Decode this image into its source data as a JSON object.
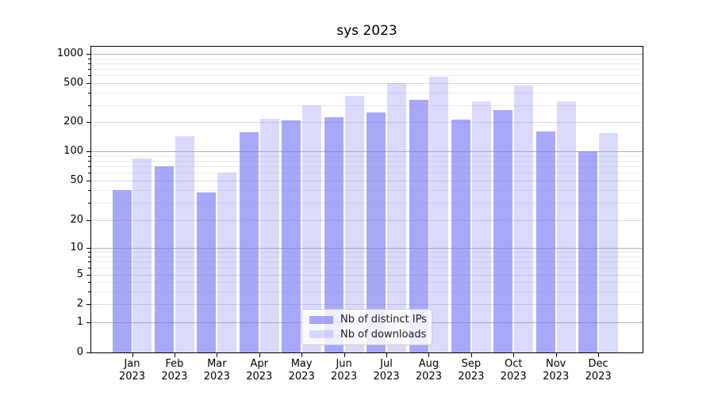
{
  "title": "sys 2023",
  "chart_data": {
    "type": "bar",
    "title": "sys 2023",
    "categories": [
      {
        "month": "Jan",
        "year": "2023"
      },
      {
        "month": "Feb",
        "year": "2023"
      },
      {
        "month": "Mar",
        "year": "2023"
      },
      {
        "month": "Apr",
        "year": "2023"
      },
      {
        "month": "May",
        "year": "2023"
      },
      {
        "month": "Jun",
        "year": "2023"
      },
      {
        "month": "Jul",
        "year": "2023"
      },
      {
        "month": "Aug",
        "year": "2023"
      },
      {
        "month": "Sep",
        "year": "2023"
      },
      {
        "month": "Oct",
        "year": "2023"
      },
      {
        "month": "Nov",
        "year": "2023"
      },
      {
        "month": "Dec",
        "year": "2023"
      }
    ],
    "series": [
      {
        "name": "Nb of distinct IPs",
        "color": "#7979f4",
        "alpha": 0.65,
        "values": [
          40,
          70,
          38,
          157,
          209,
          224,
          253,
          340,
          212,
          266,
          160,
          100
        ]
      },
      {
        "name": "Nb of downloads",
        "color": "#7979f4",
        "alpha": 0.28,
        "values": [
          85,
          143,
          60,
          218,
          298,
          370,
          500,
          580,
          328,
          478,
          326,
          154
        ]
      }
    ],
    "xlabel": "",
    "ylabel": "",
    "yscale": "symlog",
    "ylim": [
      0,
      1000
    ],
    "yticks": [
      1000,
      500,
      200,
      100,
      50,
      20,
      10,
      5,
      2,
      1,
      0
    ],
    "grid": true,
    "legend_position": "lower center"
  },
  "colors": {
    "bar_base": "#7979f4",
    "grid_major": "#b0b0b0",
    "grid_mid": "#d9d9d9",
    "grid_minor": "#ebebeb",
    "spine": "#000000",
    "text": "#000000",
    "legend_border": "#cccccc"
  }
}
